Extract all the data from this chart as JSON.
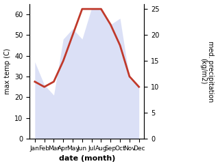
{
  "months": [
    "Jan",
    "Feb",
    "Mar",
    "Apr",
    "May",
    "Jun",
    "Jul",
    "Aug",
    "Sep",
    "Oct",
    "Nov",
    "Dec"
  ],
  "precip_left": [
    37,
    26,
    21,
    48,
    53,
    48,
    63,
    63,
    55,
    58,
    29,
    25
  ],
  "temp_right": [
    11,
    10,
    11,
    15,
    20,
    25,
    25,
    25,
    22,
    18,
    12,
    10
  ],
  "temp_color": "#c0392b",
  "precip_fill_color": "#bfc8f0",
  "ylabel_left": "max temp (C)",
  "ylabel_right": "med. precipitation\n(kg/m2)",
  "xlabel": "date (month)",
  "ylim_left": [
    0,
    65
  ],
  "ylim_right": [
    0,
    26
  ],
  "yticks_left": [
    0,
    10,
    20,
    30,
    40,
    50,
    60
  ],
  "yticks_right": [
    0,
    5,
    10,
    15,
    20,
    25
  ],
  "background_color": "#ffffff"
}
